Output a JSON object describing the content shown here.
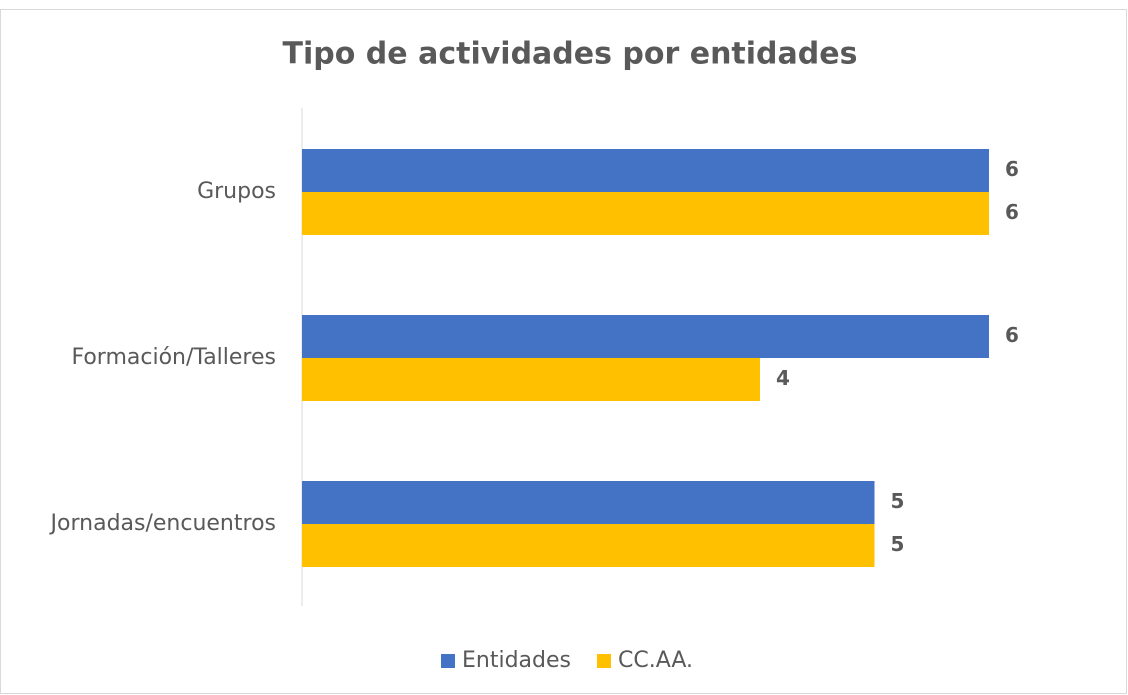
{
  "chart_data": {
    "type": "hbar",
    "title": "Tipo de actividades por entidades",
    "categories": [
      "Grupos",
      "Formación/Talleres",
      "Jornadas/encuentros"
    ],
    "series": [
      {
        "name": "Entidades",
        "color": "#4472c4",
        "values": [
          6,
          6,
          5
        ]
      },
      {
        "name": "CC.AA.",
        "color": "#ffc000",
        "values": [
          6,
          4,
          5
        ]
      }
    ],
    "xlim": [
      0,
      6
    ],
    "legend": "bottom"
  }
}
